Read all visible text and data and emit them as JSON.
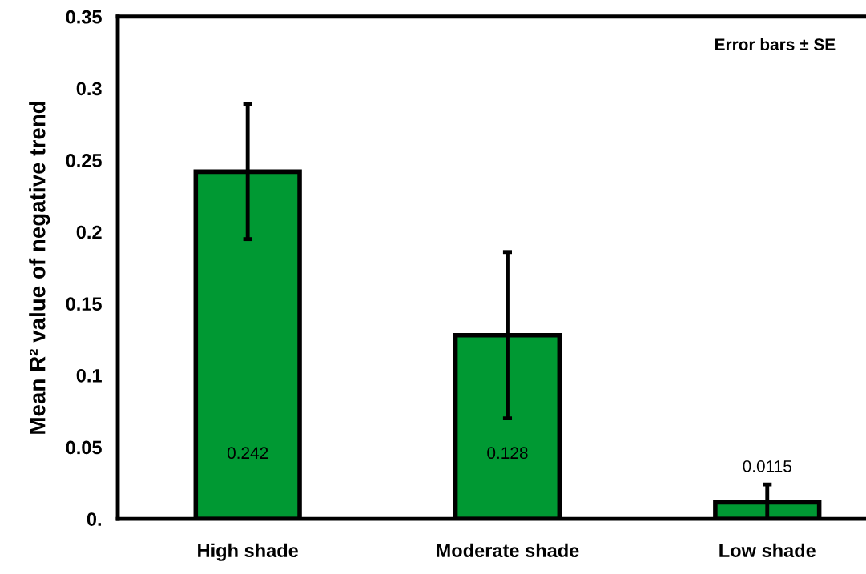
{
  "chart_data": {
    "type": "bar",
    "ylabel": "Mean R² value of negative trend",
    "categories": [
      "High shade",
      "Moderate shade",
      "Low shade"
    ],
    "values": [
      0.242,
      0.128,
      0.0115
    ],
    "errors": [
      0.047,
      0.058,
      0.0125
    ],
    "color": "#009933",
    "data_labels": true,
    "ylim": [
      0,
      0.35
    ],
    "yticks": [
      {
        "value": 0,
        "label": "0."
      },
      0.05,
      0.1,
      0.15,
      0.2,
      0.25,
      0.3,
      0.35
    ],
    "grid": false,
    "legend": false,
    "annotations": [
      "Error bars ± SE"
    ]
  }
}
